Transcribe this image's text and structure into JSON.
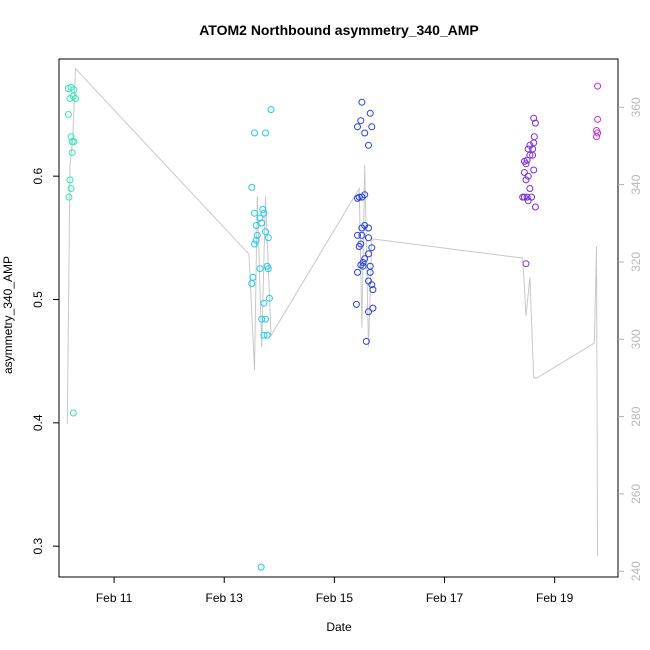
{
  "chart_data": {
    "type": "scatter",
    "title": "ATOM2 Northbound asymmetry_340_AMP",
    "xlabel": "Date",
    "ylabel": "asymmetry_340_AMP",
    "x_ticks": [
      "Feb 11",
      "Feb 13",
      "Feb 15",
      "Feb 17",
      "Feb 19"
    ],
    "xlim": [
      10.0,
      20.15
    ],
    "x_tick_values": [
      11,
      13,
      15,
      17,
      19
    ],
    "y_ticks": [
      "0.3",
      "0.4",
      "0.5",
      "0.6"
    ],
    "ylim": [
      0.275,
      0.695
    ],
    "y_tick_values": [
      0.3,
      0.4,
      0.5,
      0.6
    ],
    "y2_ticks": [
      "240",
      "260",
      "280",
      "300",
      "320",
      "340",
      "360"
    ],
    "y2lim": [
      238.5,
      372.5
    ],
    "y2_tick_values": [
      240,
      260,
      280,
      300,
      320,
      340,
      360
    ],
    "grid": false,
    "series": [
      {
        "color": "#2ee8b8",
        "points": [
          [
            10.17,
            0.671
          ],
          [
            10.22,
            0.672
          ],
          [
            10.27,
            0.67
          ],
          [
            10.2,
            0.663
          ],
          [
            10.26,
            0.665
          ],
          [
            10.3,
            0.663
          ],
          [
            10.17,
            0.65
          ],
          [
            10.22,
            0.632
          ],
          [
            10.24,
            0.628
          ],
          [
            10.27,
            0.628
          ],
          [
            10.24,
            0.619
          ],
          [
            10.2,
            0.597
          ],
          [
            10.22,
            0.59
          ],
          [
            10.18,
            0.583
          ],
          [
            10.26,
            0.408
          ]
        ]
      },
      {
        "color": "#22c8e8",
        "points": [
          [
            13.5,
            0.591
          ],
          [
            13.55,
            0.635
          ],
          [
            13.75,
            0.635
          ],
          [
            13.85,
            0.654
          ],
          [
            13.55,
            0.57
          ],
          [
            13.7,
            0.573
          ],
          [
            13.72,
            0.57
          ],
          [
            13.65,
            0.566
          ],
          [
            13.68,
            0.562
          ],
          [
            13.58,
            0.56
          ],
          [
            13.75,
            0.555
          ],
          [
            13.6,
            0.552
          ],
          [
            13.8,
            0.55
          ],
          [
            13.58,
            0.548
          ],
          [
            13.55,
            0.545
          ],
          [
            13.65,
            0.525
          ],
          [
            13.78,
            0.527
          ],
          [
            13.8,
            0.525
          ],
          [
            13.52,
            0.518
          ],
          [
            13.5,
            0.513
          ],
          [
            13.82,
            0.501
          ],
          [
            13.72,
            0.497
          ],
          [
            13.68,
            0.484
          ],
          [
            13.75,
            0.484
          ],
          [
            13.72,
            0.471
          ],
          [
            13.78,
            0.471
          ],
          [
            13.67,
            0.283
          ]
        ]
      },
      {
        "color": "#2a40e0",
        "points": [
          [
            15.5,
            0.66
          ],
          [
            15.65,
            0.651
          ],
          [
            15.48,
            0.645
          ],
          [
            15.42,
            0.64
          ],
          [
            15.68,
            0.64
          ],
          [
            15.55,
            0.635
          ],
          [
            15.62,
            0.625
          ],
          [
            15.55,
            0.585
          ],
          [
            15.45,
            0.583
          ],
          [
            15.5,
            0.583
          ],
          [
            15.42,
            0.582
          ],
          [
            15.55,
            0.56
          ],
          [
            15.62,
            0.558
          ],
          [
            15.5,
            0.558
          ],
          [
            15.42,
            0.552
          ],
          [
            15.5,
            0.552
          ],
          [
            15.62,
            0.55
          ],
          [
            15.48,
            0.545
          ],
          [
            15.45,
            0.543
          ],
          [
            15.68,
            0.542
          ],
          [
            15.62,
            0.537
          ],
          [
            15.55,
            0.533
          ],
          [
            15.48,
            0.528
          ],
          [
            15.52,
            0.527
          ],
          [
            15.65,
            0.527
          ],
          [
            15.42,
            0.522
          ],
          [
            15.65,
            0.522
          ],
          [
            15.62,
            0.515
          ],
          [
            15.68,
            0.512
          ],
          [
            15.7,
            0.508
          ],
          [
            15.4,
            0.496
          ],
          [
            15.7,
            0.493
          ],
          [
            15.62,
            0.49
          ],
          [
            15.58,
            0.466
          ],
          [
            15.52,
            0.53
          ]
        ]
      },
      {
        "color": "#7a2ee0",
        "points": [
          [
            18.62,
            0.647
          ],
          [
            18.65,
            0.643
          ],
          [
            18.63,
            0.632
          ],
          [
            18.6,
            0.622
          ],
          [
            18.62,
            0.627
          ],
          [
            18.55,
            0.625
          ],
          [
            18.52,
            0.622
          ],
          [
            18.6,
            0.617
          ],
          [
            18.55,
            0.617
          ],
          [
            18.5,
            0.613
          ],
          [
            18.48,
            0.61
          ],
          [
            18.45,
            0.612
          ],
          [
            18.62,
            0.605
          ],
          [
            18.45,
            0.603
          ],
          [
            18.52,
            0.6
          ],
          [
            18.48,
            0.597
          ],
          [
            18.55,
            0.59
          ],
          [
            18.42,
            0.583
          ],
          [
            18.45,
            0.583
          ],
          [
            18.5,
            0.583
          ],
          [
            18.52,
            0.58
          ],
          [
            18.58,
            0.583
          ],
          [
            18.65,
            0.575
          ],
          [
            18.48,
            0.529
          ]
        ]
      },
      {
        "color": "#cc2ee0",
        "points": [
          [
            19.78,
            0.673
          ],
          [
            19.78,
            0.646
          ],
          [
            19.76,
            0.637
          ],
          [
            19.78,
            0.635
          ],
          [
            19.76,
            0.632
          ]
        ]
      }
    ],
    "secondary_series": {
      "color": "#c8c8c8",
      "segments": [
        [
          [
            10.15,
            278
          ],
          [
            10.2,
            345
          ],
          [
            10.25,
            352
          ],
          [
            10.3,
            370
          ],
          [
            13.45,
            322
          ],
          [
            13.55,
            292
          ],
          [
            13.6,
            337
          ],
          [
            13.68,
            298
          ],
          [
            13.75,
            337
          ],
          [
            13.85,
            301
          ],
          [
            15.45,
            339
          ],
          [
            15.5,
            303
          ],
          [
            15.55,
            345
          ],
          [
            15.62,
            298
          ],
          [
            15.68,
            326
          ],
          [
            18.42,
            321
          ],
          [
            18.48,
            306
          ],
          [
            18.55,
            316
          ],
          [
            18.62,
            290
          ],
          [
            18.68,
            290
          ],
          [
            19.72,
            299
          ],
          [
            19.76,
            324
          ],
          [
            19.78,
            244
          ]
        ]
      ]
    }
  }
}
